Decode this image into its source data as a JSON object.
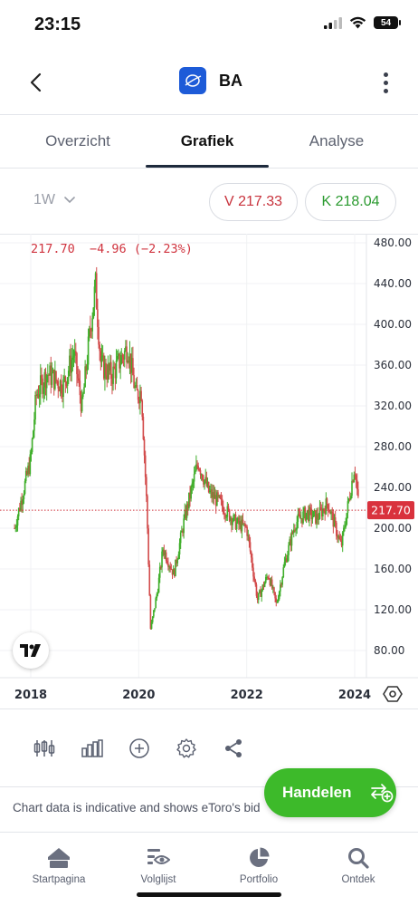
{
  "status_bar": {
    "time": "23:15",
    "battery": "54"
  },
  "header": {
    "title": "BA"
  },
  "tabs": [
    {
      "label": "Overzicht",
      "active": false
    },
    {
      "label": "Grafiek",
      "active": true
    },
    {
      "label": "Analyse",
      "active": false
    }
  ],
  "controls": {
    "interval": "1W",
    "sell_label": "V 217.33",
    "buy_label": "K 218.04"
  },
  "quote": {
    "price": "217.70",
    "change": "−4.96",
    "change_pct": "(−2.23%)"
  },
  "colors": {
    "up": "#3fae2a",
    "down": "#d24b4b",
    "accent_green": "#3dba2a",
    "sell_red": "#c8323c"
  },
  "chart_data": {
    "type": "candlestick",
    "x_ticks": [
      "2018",
      "2020",
      "2022",
      "2024"
    ],
    "y_ticks": [
      "480.00",
      "440.00",
      "400.00",
      "360.00",
      "320.00",
      "280.00",
      "240.00",
      "200.00",
      "160.00",
      "120.00",
      "80.00"
    ],
    "ylim": [
      70,
      485
    ],
    "current_price": 217.7,
    "current_price_label": "217.70",
    "approx_close_path": [
      {
        "x": 2017.7,
        "y": 200
      },
      {
        "x": 2017.9,
        "y": 245
      },
      {
        "x": 2018.0,
        "y": 268
      },
      {
        "x": 2018.1,
        "y": 330
      },
      {
        "x": 2018.3,
        "y": 352
      },
      {
        "x": 2018.6,
        "y": 340
      },
      {
        "x": 2018.8,
        "y": 372
      },
      {
        "x": 2018.95,
        "y": 318
      },
      {
        "x": 2019.1,
        "y": 395
      },
      {
        "x": 2019.2,
        "y": 438
      },
      {
        "x": 2019.3,
        "y": 360
      },
      {
        "x": 2019.5,
        "y": 350
      },
      {
        "x": 2019.8,
        "y": 378
      },
      {
        "x": 2019.95,
        "y": 330
      },
      {
        "x": 2020.05,
        "y": 335
      },
      {
        "x": 2020.15,
        "y": 220
      },
      {
        "x": 2020.22,
        "y": 100
      },
      {
        "x": 2020.35,
        "y": 140
      },
      {
        "x": 2020.45,
        "y": 180
      },
      {
        "x": 2020.65,
        "y": 155
      },
      {
        "x": 2020.85,
        "y": 210
      },
      {
        "x": 2021.1,
        "y": 265
      },
      {
        "x": 2021.3,
        "y": 235
      },
      {
        "x": 2021.5,
        "y": 225
      },
      {
        "x": 2021.8,
        "y": 205
      },
      {
        "x": 2022.0,
        "y": 200
      },
      {
        "x": 2022.2,
        "y": 130
      },
      {
        "x": 2022.4,
        "y": 155
      },
      {
        "x": 2022.55,
        "y": 125
      },
      {
        "x": 2022.7,
        "y": 165
      },
      {
        "x": 2022.9,
        "y": 205
      },
      {
        "x": 2023.1,
        "y": 215
      },
      {
        "x": 2023.3,
        "y": 210
      },
      {
        "x": 2023.5,
        "y": 225
      },
      {
        "x": 2023.75,
        "y": 182
      },
      {
        "x": 2023.9,
        "y": 230
      },
      {
        "x": 2024.0,
        "y": 262
      },
      {
        "x": 2024.08,
        "y": 218
      }
    ]
  },
  "toolbar": [
    "candles-icon",
    "bars-icon",
    "add-circle-icon",
    "settings-icon",
    "share-icon"
  ],
  "trade_button": {
    "label": "Handelen"
  },
  "disclaimer": "Chart data is indicative and shows eToro's bid",
  "bottom_nav": [
    {
      "label": "Startpagina",
      "icon": "home-icon"
    },
    {
      "label": "Volglijst",
      "icon": "watchlist-icon"
    },
    {
      "label": "Portfolio",
      "icon": "pie-chart-icon"
    },
    {
      "label": "Ontdek",
      "icon": "search-icon"
    }
  ]
}
